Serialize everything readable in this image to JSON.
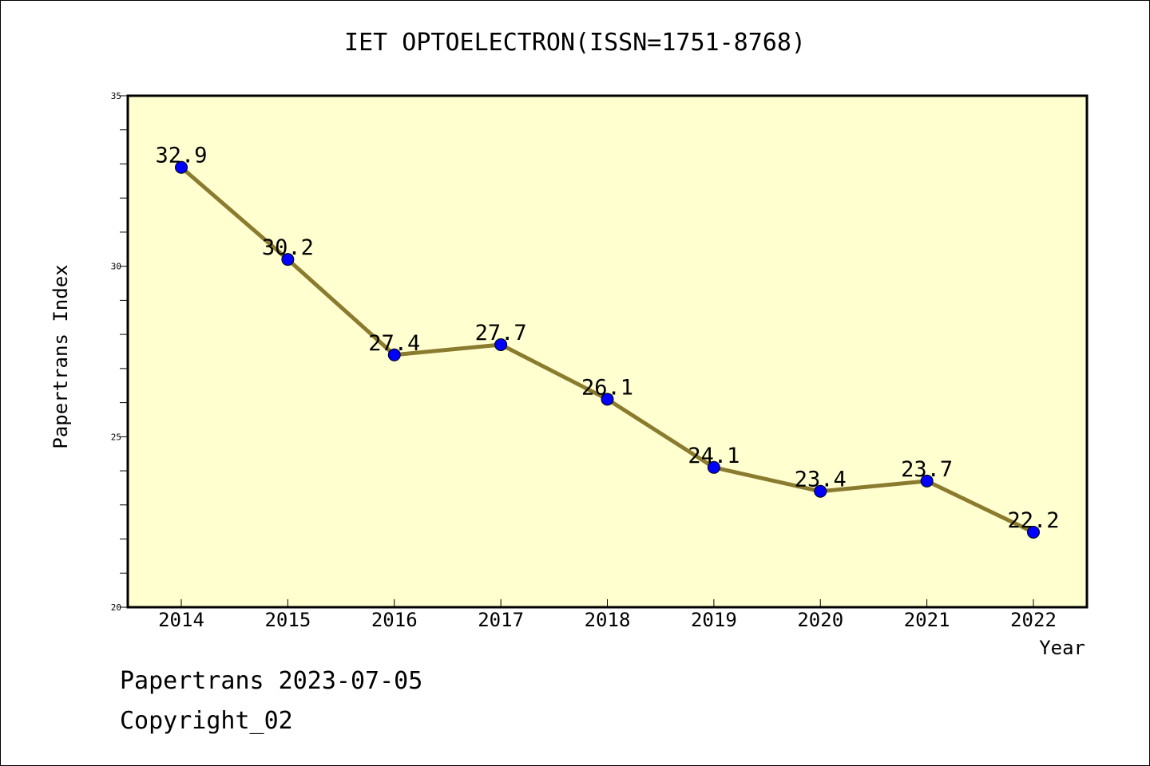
{
  "chart_data": {
    "type": "line",
    "title": "IET OPTOELECTRON(ISSN=1751-8768)",
    "xlabel": "Year",
    "ylabel": "Papertrans Index",
    "categories": [
      "2014",
      "2015",
      "2016",
      "2017",
      "2018",
      "2019",
      "2020",
      "2021",
      "2022"
    ],
    "series": [
      {
        "values": [
          32.9,
          30.2,
          27.4,
          27.7,
          26.1,
          24.1,
          23.4,
          23.7,
          22.2
        ]
      }
    ],
    "data_labels": [
      "32.9",
      "30.2",
      "27.4",
      "27.7",
      "26.1",
      "24.1",
      "23.4",
      "23.7",
      "22.2"
    ],
    "ylim": [
      20,
      35
    ],
    "y_ticks": [
      "20",
      "25",
      "30",
      "35"
    ],
    "grid": false,
    "legend": "none",
    "colors": {
      "plot_background": "#ffffd0",
      "line": "#8b7b2f",
      "marker": "#0000ff"
    }
  },
  "footer": {
    "line1": "Papertrans 2023-07-05",
    "line2": "Copyright_02"
  }
}
